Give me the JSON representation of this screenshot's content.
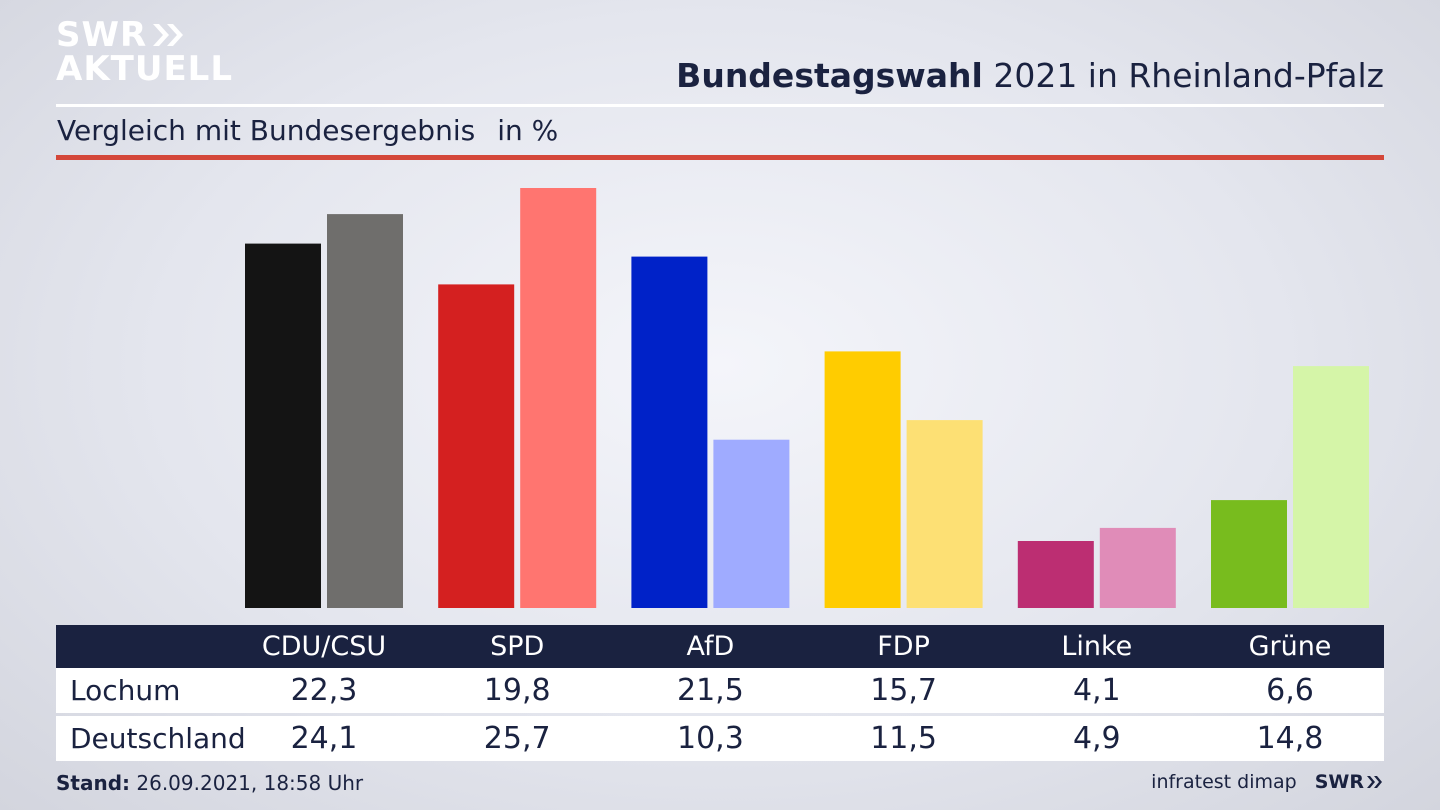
{
  "brand": {
    "line1": "SWR",
    "line2": "AKTUELL",
    "footer_logo": "SWR"
  },
  "header": {
    "title_bold": "Bundestagswahl",
    "title_rest": "2021 in Rheinland-Pfalz",
    "subtitle": "Vergleich mit Bundesergebnis",
    "unit": "in %"
  },
  "colors": {
    "navy": "#1a2240",
    "accent_red": "#d4473a"
  },
  "chart_data": {
    "type": "bar",
    "categories": [
      "CDU/CSU",
      "SPD",
      "AfD",
      "FDP",
      "Linke",
      "Grüne"
    ],
    "series": [
      {
        "name": "Lochum",
        "values": [
          22.3,
          19.8,
          21.5,
          15.7,
          4.1,
          6.6
        ],
        "colors": [
          "#141414",
          "#d42020",
          "#0022c8",
          "#ffcc00",
          "#bc2e72",
          "#78bc1e"
        ]
      },
      {
        "name": "Deutschland",
        "values": [
          24.1,
          25.7,
          10.3,
          11.5,
          4.9,
          14.8
        ],
        "colors": [
          "#6f6e6c",
          "#ff7570",
          "#9fabff",
          "#fde074",
          "#e08cb8",
          "#d5f5a8"
        ]
      }
    ],
    "value_labels": [
      [
        "22,3",
        "19,8",
        "21,5",
        "15,7",
        "4,1",
        "6,6"
      ],
      [
        "24,1",
        "25,7",
        "10,3",
        "11,5",
        "4,9",
        "14,8"
      ]
    ],
    "ylim": [
      0,
      25.7
    ],
    "legend": "table-below"
  },
  "footer": {
    "stand_label": "Stand:",
    "stand_value": "26.09.2021, 18:58 Uhr",
    "source": "infratest dimap"
  }
}
